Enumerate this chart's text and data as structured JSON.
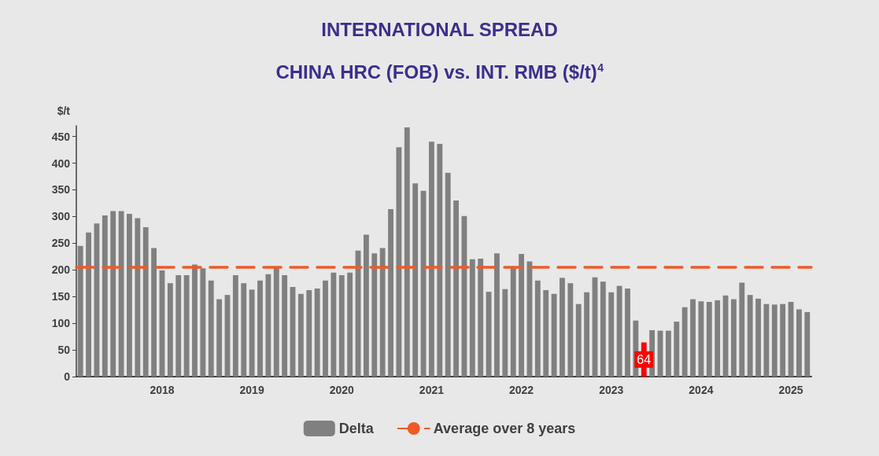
{
  "chart_data": {
    "type": "bar",
    "title": "INTERNATIONAL SPREAD",
    "subtitle": "CHINA HRC (FOB) vs. INT. RMB ($/t)$^{4}$",
    "ylabel": "$/t",
    "categories": [
      null,
      null,
      null,
      null,
      null,
      null,
      null,
      null,
      null,
      null,
      "2018",
      null,
      null,
      null,
      null,
      null,
      null,
      null,
      null,
      null,
      null,
      "2019",
      null,
      null,
      null,
      null,
      null,
      null,
      null,
      null,
      null,
      null,
      "2020",
      null,
      null,
      null,
      null,
      null,
      null,
      null,
      null,
      null,
      null,
      "2021",
      null,
      null,
      null,
      null,
      null,
      null,
      null,
      null,
      null,
      null,
      "2022",
      null,
      null,
      null,
      null,
      null,
      null,
      null,
      null,
      null,
      null,
      "2023",
      null,
      null,
      null,
      null,
      null,
      null,
      null,
      null,
      null,
      null,
      "2024",
      null,
      null,
      null,
      null,
      null,
      null,
      null,
      null,
      null,
      null,
      "2025",
      null,
      null
    ],
    "series": [
      {
        "name": "Delta",
        "color": "#808080",
        "values": [
          245,
          270,
          287,
          302,
          310,
          310,
          305,
          297,
          280,
          241,
          199,
          175,
          190,
          190,
          210,
          203,
          180,
          145,
          153,
          190,
          175,
          163,
          180,
          192,
          205,
          190,
          168,
          155,
          162,
          165,
          180,
          195,
          190,
          195,
          236,
          266,
          231,
          241,
          314,
          430,
          467,
          362,
          348,
          440,
          436,
          382,
          330,
          301,
          220,
          221,
          159,
          231,
          164,
          205,
          230,
          216,
          180,
          162,
          155,
          185,
          175,
          136,
          158,
          186,
          178,
          158,
          170,
          165,
          105,
          64,
          87,
          86,
          86,
          103,
          130,
          145,
          141,
          140,
          143,
          152,
          145,
          176,
          153,
          146,
          136,
          135,
          136,
          140,
          126,
          121
        ],
        "colors": [
          "#808080",
          "#808080",
          "#808080",
          "#808080",
          "#808080",
          "#808080",
          "#808080",
          "#808080",
          "#808080",
          "#808080",
          "#808080",
          "#808080",
          "#808080",
          "#808080",
          "#808080",
          "#808080",
          "#808080",
          "#808080",
          "#808080",
          "#808080",
          "#808080",
          "#808080",
          "#808080",
          "#808080",
          "#808080",
          "#808080",
          "#808080",
          "#808080",
          "#808080",
          "#808080",
          "#808080",
          "#808080",
          "#808080",
          "#808080",
          "#808080",
          "#808080",
          "#808080",
          "#808080",
          "#808080",
          "#808080",
          "#808080",
          "#808080",
          "#808080",
          "#808080",
          "#808080",
          "#808080",
          "#808080",
          "#808080",
          "#808080",
          "#808080",
          "#808080",
          "#808080",
          "#808080",
          "#808080",
          "#808080",
          "#808080",
          "#808080",
          "#808080",
          "#808080",
          "#808080",
          "#808080",
          "#808080",
          "#808080",
          "#808080",
          "#808080",
          "#808080",
          "#808080",
          "#808080",
          "#808080",
          "#ff0000",
          "#808080",
          "#808080",
          "#808080",
          "#808080",
          "#808080",
          "#808080",
          "#808080",
          "#808080",
          "#808080",
          "#808080",
          "#808080",
          "#808080",
          "#808080",
          "#808080",
          "#808080",
          "#808080",
          "#808080",
          "#808080",
          "#808080",
          "#808080"
        ],
        "value_labels": [
          null,
          null,
          null,
          null,
          null,
          null,
          null,
          null,
          null,
          null,
          null,
          null,
          null,
          null,
          null,
          null,
          null,
          null,
          null,
          null,
          null,
          null,
          null,
          null,
          null,
          null,
          null,
          null,
          null,
          null,
          null,
          null,
          null,
          null,
          null,
          null,
          null,
          null,
          null,
          null,
          null,
          null,
          null,
          null,
          null,
          null,
          null,
          null,
          null,
          null,
          null,
          null,
          null,
          null,
          null,
          null,
          null,
          null,
          null,
          null,
          null,
          null,
          null,
          null,
          null,
          null,
          null,
          null,
          null,
          "64",
          null,
          null,
          null,
          null,
          null,
          null,
          null,
          null,
          null,
          null,
          null,
          null,
          null,
          null,
          null,
          null,
          null,
          null,
          null,
          null
        ]
      }
    ],
    "ref_lines": [
      {
        "axis": "y",
        "value": 205,
        "label": "Average over 8 years",
        "color": "#f05a28",
        "line_style": "dashed"
      }
    ],
    "ylim": [
      0,
      470
    ],
    "yticks": [
      0,
      50,
      100,
      150,
      200,
      250,
      300,
      350,
      400,
      450
    ],
    "grid": false,
    "legend": "bottom"
  }
}
